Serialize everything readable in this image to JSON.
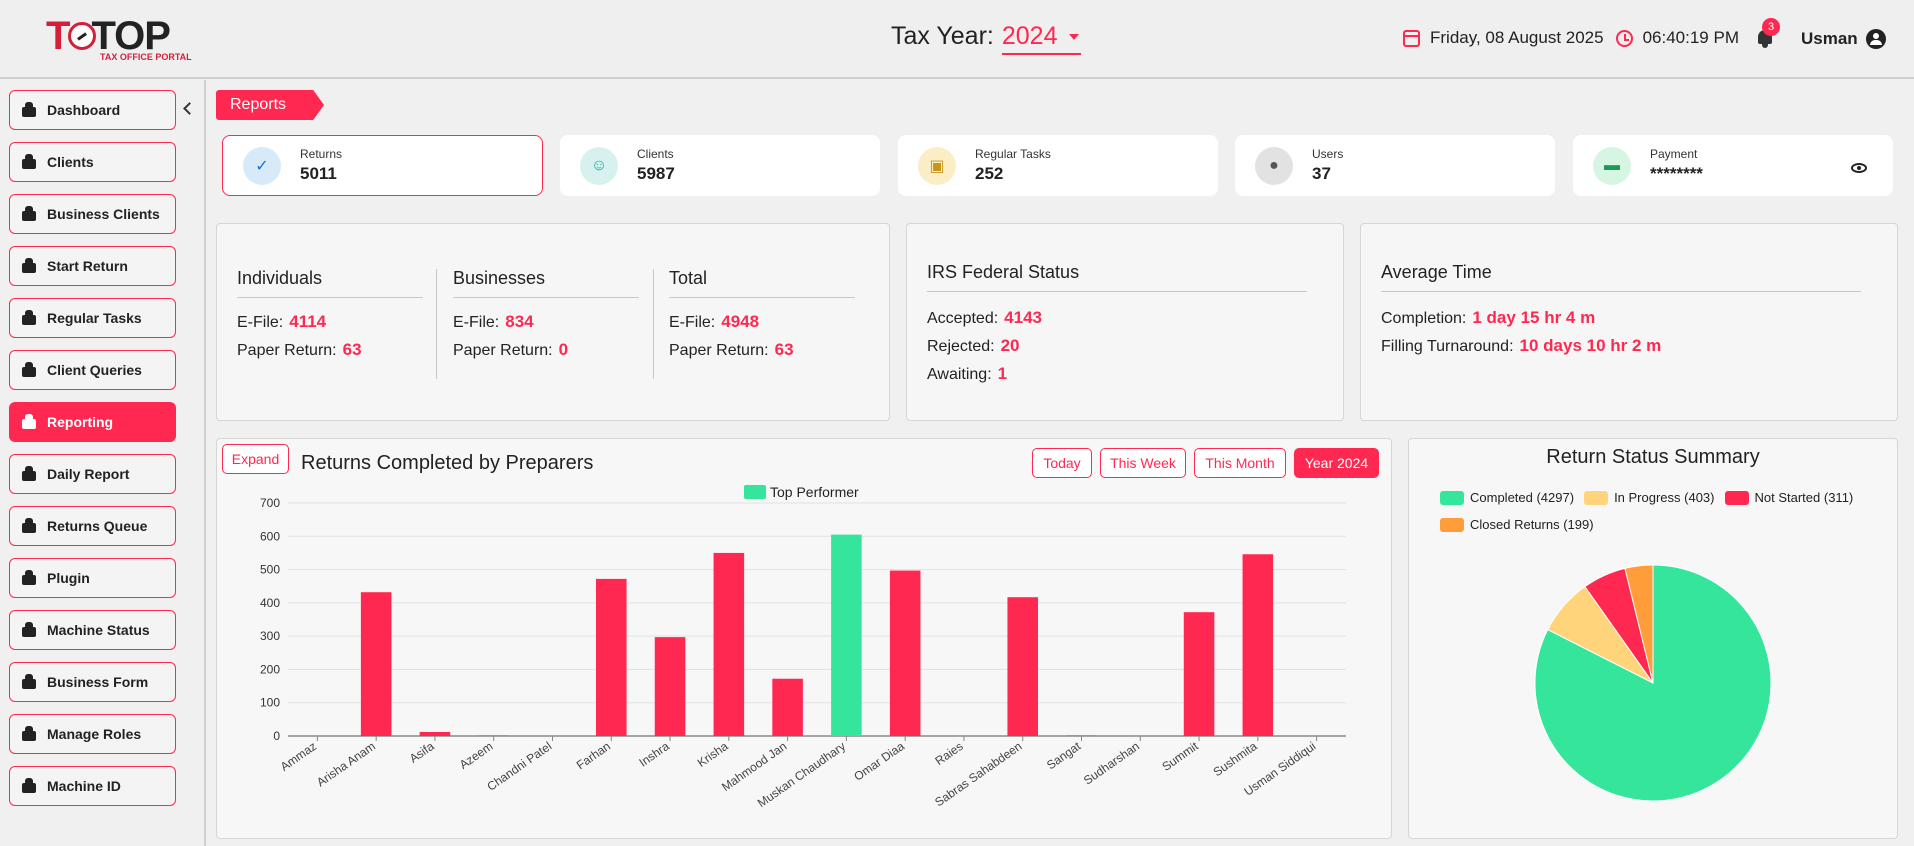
{
  "header": {
    "logo_text": "TOP",
    "logo_subtitle": "TAX OFFICE PORTAL",
    "tax_year_label": "Tax Year:",
    "tax_year_value": "2024",
    "date": "Friday, 08 August 2025",
    "time": "06:40:19 PM",
    "notifications_count": "3",
    "user_name": "Usman"
  },
  "sidebar": {
    "items": [
      {
        "label": "Dashboard",
        "icon": "home-icon"
      },
      {
        "label": "Clients",
        "icon": "users-icon"
      },
      {
        "label": "Business Clients",
        "icon": "building-icon"
      },
      {
        "label": "Start Return",
        "icon": "document-icon"
      },
      {
        "label": "Regular Tasks",
        "icon": "tasks-icon"
      },
      {
        "label": "Client Queries",
        "icon": "chat-icon"
      },
      {
        "label": "Reporting",
        "icon": "reporting-icon",
        "active": true
      },
      {
        "label": "Daily Report",
        "icon": "report-icon"
      },
      {
        "label": "Returns Queue",
        "icon": "queue-icon"
      },
      {
        "label": "Plugin",
        "icon": "plugin-icon"
      },
      {
        "label": "Machine Status",
        "icon": "machine-icon"
      },
      {
        "label": "Business Form",
        "icon": "form-icon"
      },
      {
        "label": "Manage Roles",
        "icon": "roles-icon"
      },
      {
        "label": "Machine ID",
        "icon": "monitor-icon"
      }
    ]
  },
  "page": {
    "section_tag": "Reports"
  },
  "stats": [
    {
      "label": "Returns",
      "value": "5011",
      "icon": "returns-icon",
      "color": "#d6eaf9"
    },
    {
      "label": "Clients",
      "value": "5987",
      "icon": "clients-icon",
      "color": "#d7f1ee"
    },
    {
      "label": "Regular Tasks",
      "value": "252",
      "icon": "clipboard-icon",
      "color": "#fbedc4"
    },
    {
      "label": "Users",
      "value": "37",
      "icon": "user-icon",
      "color": "#e2e2e2"
    },
    {
      "label": "Payment",
      "value": "********",
      "icon": "card-icon",
      "color": "#d6f5e3"
    }
  ],
  "summary": {
    "individuals": {
      "title": "Individuals",
      "efile_label": "E-File:",
      "efile": "4114",
      "paper_label": "Paper Return:",
      "paper": "63"
    },
    "businesses": {
      "title": "Businesses",
      "efile_label": "E-File:",
      "efile": "834",
      "paper_label": "Paper Return:",
      "paper": "0"
    },
    "total": {
      "title": "Total",
      "efile_label": "E-File:",
      "efile": "4948",
      "paper_label": "Paper Return:",
      "paper": "63"
    },
    "irs": {
      "title": "IRS Federal Status",
      "accepted_label": "Accepted:",
      "accepted": "4143",
      "rejected_label": "Rejected:",
      "rejected": "20",
      "awaiting_label": "Awaiting:",
      "awaiting": "1"
    },
    "avg_time": {
      "title": "Average Time",
      "completion_label": "Completion:",
      "completion": "1 day 15 hr 4 m",
      "turnaround_label": "Filling Turnaround:",
      "turnaround": "10 days 10 hr 2 m"
    }
  },
  "chart_controls": {
    "expand": "Expand",
    "title": "Returns Completed by Preparers",
    "filters": [
      "Today",
      "This Week",
      "This Month",
      "Year 2024"
    ],
    "legend": "Top Performer"
  },
  "colors": {
    "accent": "#ff2851",
    "top": "#35e59c",
    "in_progress": "#ffd47a",
    "closed": "#ff9d3a"
  },
  "chart_data": [
    {
      "type": "bar",
      "title": "Returns Completed by Preparers",
      "categories": [
        "Ammaz",
        "Arisha Anam",
        "Asifa",
        "Azeem",
        "Chandni Patel",
        "Farhan",
        "Inshra",
        "Krisha",
        "Mahmood Jan",
        "Muskan Chaudhary",
        "Omar Diaa",
        "Raies",
        "Sabras Sahabdeen",
        "Sangat",
        "Sudharshan",
        "Summit",
        "Sushmita",
        "Usman Siddiqui"
      ],
      "values": [
        0,
        432,
        12,
        2,
        0,
        472,
        297,
        550,
        172,
        605,
        497,
        0,
        417,
        2,
        0,
        372,
        546,
        0
      ],
      "top_performer": "Muskan Chaudhary",
      "ylim": [
        0,
        700
      ],
      "yticks": [
        0,
        100,
        200,
        300,
        400,
        500,
        600,
        700
      ],
      "legend": [
        "Top Performer"
      ],
      "grid": true
    },
    {
      "type": "pie",
      "title": "Return Status Summary",
      "labels": [
        "Completed (4297)",
        "In Progress (403)",
        "Not Started (311)",
        "Closed Returns (199)"
      ],
      "values": [
        4297,
        403,
        311,
        199
      ],
      "colors": [
        "#35e59c",
        "#ffd47a",
        "#ff2851",
        "#ff9d3a"
      ],
      "legend_position": "top"
    }
  ]
}
